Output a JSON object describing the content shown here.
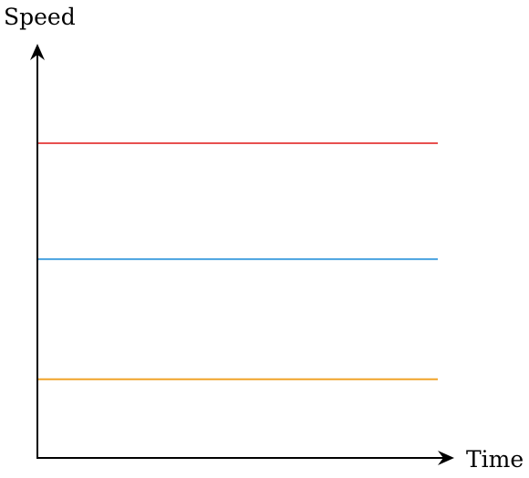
{
  "chart_data": {
    "type": "line",
    "title": "",
    "xlabel": "Time",
    "ylabel": "Speed",
    "xlim": [
      0,
      10
    ],
    "ylim": [
      0,
      10
    ],
    "grid": false,
    "legend": "none",
    "series": [
      {
        "color": "#e8504f",
        "x": [
          0,
          10
        ],
        "y": [
          7.6,
          7.6
        ]
      },
      {
        "color": "#4aa3e0",
        "x": [
          0,
          10
        ],
        "y": [
          4.8,
          4.8
        ]
      },
      {
        "color": "#f0a42a",
        "x": [
          0,
          10
        ],
        "y": [
          1.9,
          1.9
        ]
      }
    ]
  }
}
